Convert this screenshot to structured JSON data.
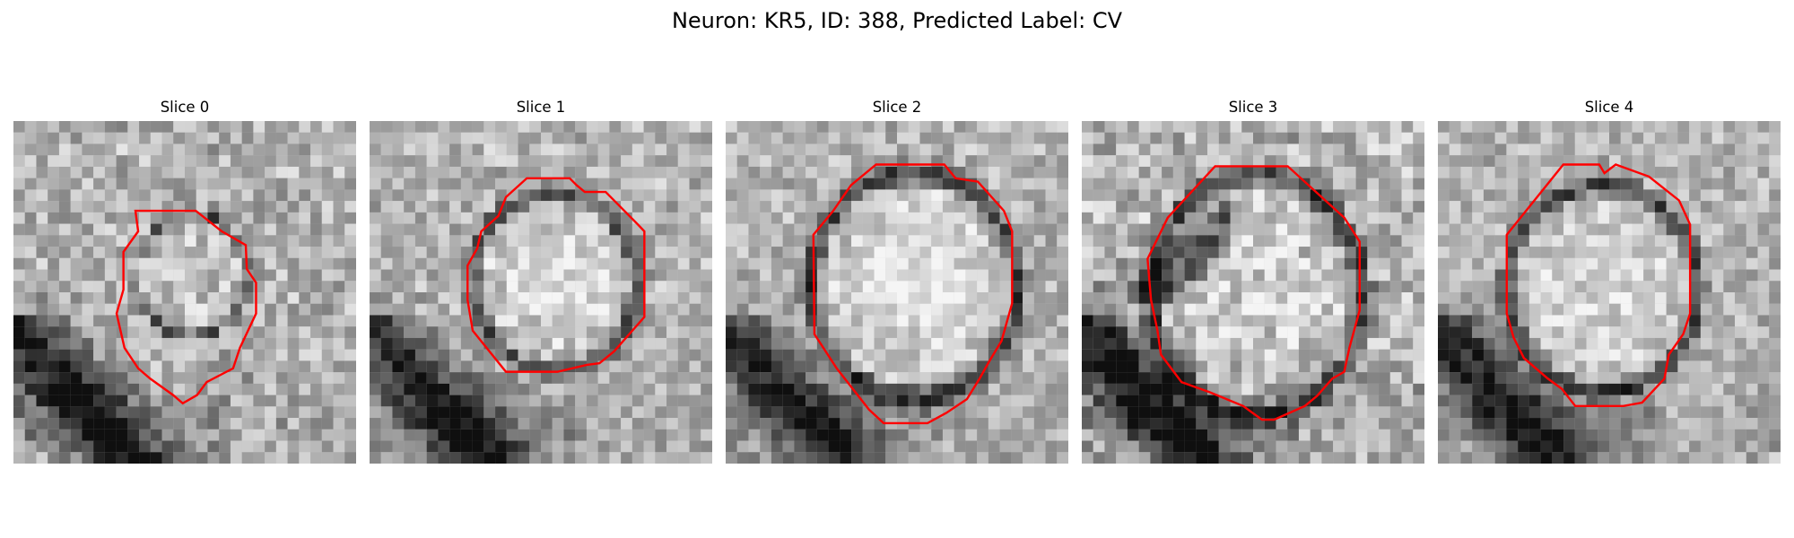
{
  "figure": {
    "title": "Neuron: KR5, ID: 388, Predicted Label: CV"
  },
  "panels": [
    {
      "title": "Slice 0",
      "contour_color": "#ff0000",
      "contour": [
        [
          0.356,
          0.262
        ],
        [
          0.532,
          0.262
        ],
        [
          0.608,
          0.322
        ],
        [
          0.678,
          0.362
        ],
        [
          0.681,
          0.432
        ],
        [
          0.708,
          0.472
        ],
        [
          0.708,
          0.562
        ],
        [
          0.661,
          0.662
        ],
        [
          0.641,
          0.722
        ],
        [
          0.564,
          0.762
        ],
        [
          0.536,
          0.8
        ],
        [
          0.494,
          0.824
        ],
        [
          0.466,
          0.8
        ],
        [
          0.399,
          0.752
        ],
        [
          0.364,
          0.722
        ],
        [
          0.324,
          0.662
        ],
        [
          0.301,
          0.562
        ],
        [
          0.321,
          0.492
        ],
        [
          0.321,
          0.382
        ],
        [
          0.364,
          0.322
        ]
      ]
    },
    {
      "title": "Slice 1",
      "contour_color": "#ff0000",
      "contour": [
        [
          0.459,
          0.167
        ],
        [
          0.584,
          0.167
        ],
        [
          0.604,
          0.187
        ],
        [
          0.628,
          0.207
        ],
        [
          0.689,
          0.207
        ],
        [
          0.783,
          0.302
        ],
        [
          0.802,
          0.322
        ],
        [
          0.802,
          0.572
        ],
        [
          0.714,
          0.672
        ],
        [
          0.671,
          0.707
        ],
        [
          0.634,
          0.712
        ],
        [
          0.548,
          0.732
        ],
        [
          0.398,
          0.732
        ],
        [
          0.301,
          0.612
        ],
        [
          0.286,
          0.522
        ],
        [
          0.286,
          0.422
        ],
        [
          0.314,
          0.372
        ],
        [
          0.326,
          0.322
        ],
        [
          0.376,
          0.277
        ],
        [
          0.398,
          0.222
        ]
      ]
    },
    {
      "title": "Slice 2",
      "contour_color": "#ff0000",
      "contour": [
        [
          0.439,
          0.127
        ],
        [
          0.638,
          0.127
        ],
        [
          0.671,
          0.167
        ],
        [
          0.736,
          0.177
        ],
        [
          0.812,
          0.262
        ],
        [
          0.836,
          0.322
        ],
        [
          0.836,
          0.532
        ],
        [
          0.805,
          0.642
        ],
        [
          0.769,
          0.702
        ],
        [
          0.741,
          0.752
        ],
        [
          0.704,
          0.812
        ],
        [
          0.644,
          0.852
        ],
        [
          0.589,
          0.882
        ],
        [
          0.461,
          0.882
        ],
        [
          0.418,
          0.842
        ],
        [
          0.324,
          0.722
        ],
        [
          0.259,
          0.622
        ],
        [
          0.256,
          0.332
        ],
        [
          0.314,
          0.262
        ],
        [
          0.366,
          0.187
        ]
      ]
    },
    {
      "title": "Slice 3",
      "contour_color": "#ff0000",
      "contour": [
        [
          0.389,
          0.132
        ],
        [
          0.601,
          0.132
        ],
        [
          0.766,
          0.282
        ],
        [
          0.811,
          0.352
        ],
        [
          0.811,
          0.552
        ],
        [
          0.781,
          0.662
        ],
        [
          0.766,
          0.732
        ],
        [
          0.731,
          0.752
        ],
        [
          0.687,
          0.802
        ],
        [
          0.651,
          0.832
        ],
        [
          0.561,
          0.872
        ],
        [
          0.526,
          0.872
        ],
        [
          0.471,
          0.832
        ],
        [
          0.374,
          0.792
        ],
        [
          0.291,
          0.762
        ],
        [
          0.231,
          0.682
        ],
        [
          0.221,
          0.612
        ],
        [
          0.202,
          0.522
        ],
        [
          0.192,
          0.402
        ],
        [
          0.251,
          0.282
        ]
      ]
    },
    {
      "title": "Slice 4",
      "contour_color": "#ff0000",
      "contour": [
        [
          0.366,
          0.127
        ],
        [
          0.471,
          0.127
        ],
        [
          0.486,
          0.152
        ],
        [
          0.519,
          0.127
        ],
        [
          0.616,
          0.162
        ],
        [
          0.704,
          0.232
        ],
        [
          0.736,
          0.302
        ],
        [
          0.736,
          0.562
        ],
        [
          0.716,
          0.622
        ],
        [
          0.674,
          0.682
        ],
        [
          0.661,
          0.752
        ],
        [
          0.596,
          0.822
        ],
        [
          0.541,
          0.832
        ],
        [
          0.401,
          0.832
        ],
        [
          0.362,
          0.782
        ],
        [
          0.321,
          0.752
        ],
        [
          0.251,
          0.692
        ],
        [
          0.221,
          0.632
        ],
        [
          0.201,
          0.562
        ],
        [
          0.201,
          0.332
        ]
      ]
    }
  ]
}
